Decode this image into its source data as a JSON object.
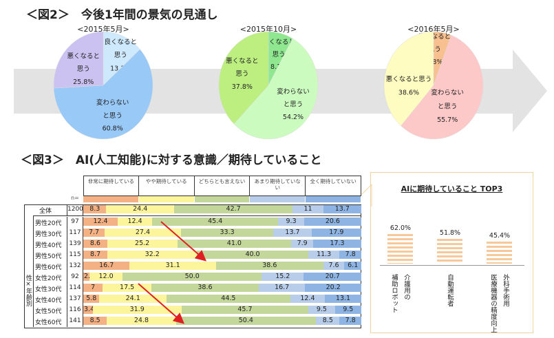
{
  "fig2": {
    "title": "＜図2＞　今後1年間の景気の見通し"
  },
  "fig3": {
    "title": "＜図3＞　AI(人工知能)に対する意識／期待していること"
  },
  "chart_data": [
    {
      "type": "pie",
      "title": "<2015年5月>",
      "labels": [
        "良くなると思う",
        "変わらないと思う",
        "悪くなると思う"
      ],
      "label_lines": [
        [
          "良くなると",
          "思う"
        ],
        [
          "変わらない",
          "と思う"
        ],
        [
          "悪くなると",
          "思う"
        ]
      ],
      "values": [
        13.3,
        60.8,
        25.8
      ],
      "colors": [
        "#cde9fb",
        "#99c9f7",
        "#cbc2f2"
      ]
    },
    {
      "type": "pie",
      "title": "<2015年10月>",
      "labels": [
        "良くなると思う",
        "変わらないと思う",
        "悪くなると思う"
      ],
      "label_lines": [
        [
          "良くなると",
          "思う"
        ],
        [
          "変わらない",
          "と思う"
        ],
        [
          "悪くなると",
          "思う"
        ]
      ],
      "values": [
        8.1,
        54.2,
        37.8
      ],
      "colors": [
        "#8fe88f",
        "#ccfbc0",
        "#bdee80"
      ]
    },
    {
      "type": "pie",
      "title": "<2016年5月>",
      "labels": [
        "良くなると思う",
        "変わらないと思う",
        "悪くなると思う"
      ],
      "label_lines": [
        [
          "良くなると",
          "思う"
        ],
        [
          "変わらない",
          "と思う"
        ],
        [
          "悪くなると思う"
        ]
      ],
      "values": [
        5.8,
        55.7,
        38.6
      ],
      "colors": [
        "#f8c08e",
        "#fcc8c8",
        "#fefcc0"
      ]
    },
    {
      "type": "bar",
      "stacked": true,
      "orientation": "horizontal",
      "series_names": [
        "非常に期待している",
        "やや期待している",
        "どちらとも言えない",
        "あまり期待していない",
        "全く期待していない"
      ],
      "colors": [
        "#f4b183",
        "#fdf59c",
        "#c4d79b",
        "#b8cde9",
        "#8db4e2"
      ],
      "n_label": "n=",
      "group_label": "性×年齢別",
      "rows": [
        {
          "label": "全体",
          "n": 1200,
          "values": [
            8.3,
            24.4,
            42.7,
            11,
            13.7
          ]
        },
        {
          "label": "男性20代",
          "n": 97,
          "values": [
            12.4,
            12.4,
            45.4,
            9.3,
            20.6
          ]
        },
        {
          "label": "男性30代",
          "n": 117,
          "values": [
            7.7,
            27.4,
            33.3,
            13.7,
            17.9
          ]
        },
        {
          "label": "男性40代",
          "n": 139,
          "values": [
            8.6,
            25.2,
            41.0,
            7.9,
            17.3
          ]
        },
        {
          "label": "男性50代",
          "n": 115,
          "values": [
            8.7,
            32.2,
            40.0,
            11.3,
            7.8
          ]
        },
        {
          "label": "男性60代",
          "n": 132,
          "values": [
            16.7,
            31.1,
            38.6,
            7.6,
            6.1
          ]
        },
        {
          "label": "女性20代",
          "n": 92,
          "values": [
            2.2,
            12.0,
            50.0,
            15.2,
            20.7
          ]
        },
        {
          "label": "女性30代",
          "n": 114,
          "values": [
            7,
            17.5,
            38.6,
            16.7,
            20.2
          ]
        },
        {
          "label": "女性40代",
          "n": 137,
          "values": [
            5.8,
            24.1,
            44.5,
            12.4,
            13.1
          ]
        },
        {
          "label": "女性50代",
          "n": 116,
          "values": [
            3.4,
            31.9,
            45.7,
            9.5,
            9.5
          ]
        },
        {
          "label": "女性60代",
          "n": 141,
          "values": [
            8.5,
            24.8,
            50.4,
            8.5,
            7.8
          ]
        }
      ],
      "value_labels": [
        [
          "8.3",
          "24.4",
          "42.7",
          "11",
          "13.7"
        ],
        [
          "12.4",
          "12.4",
          "45.4",
          "9.3",
          "20.6"
        ],
        [
          "7.7",
          "27.4",
          "33.3",
          "13.7",
          "17.9"
        ],
        [
          "8.6",
          "25.2",
          "41.0",
          "7.9",
          "17.3"
        ],
        [
          "8.7",
          "32.2",
          "40.0",
          "11.3",
          "7.8"
        ],
        [
          "16.7",
          "31.1",
          "38.6",
          "7.6",
          "6.1"
        ],
        [
          "2.2",
          "12.0",
          "50.0",
          "15.2",
          "20.7"
        ],
        [
          "7",
          "17.5",
          "38.6",
          "16.7",
          "20.2"
        ],
        [
          "5.8",
          "24.1",
          "44.5",
          "12.4",
          "13.1"
        ],
        [
          "3.4",
          "31.9",
          "45.7",
          "9.5",
          "9.5"
        ],
        [
          "8.5",
          "24.8",
          "50.4",
          "8.5",
          "7.8"
        ]
      ]
    },
    {
      "type": "bar",
      "title": "AIに期待していること TOP3",
      "categories": [
        "介護用の補助ロボット",
        "自動運転者",
        "外科手術用医療機器の精度向上"
      ],
      "category_lines": [
        [
          "介護用の",
          "補助ロボット"
        ],
        [
          "自動運転者"
        ],
        [
          "外科手術用",
          "医療機器の精度向上"
        ]
      ],
      "values": [
        62.0,
        51.8,
        45.4
      ],
      "value_labels": [
        "62.0%",
        "51.8%",
        "45.4%"
      ],
      "color": "#f7c99a"
    }
  ]
}
